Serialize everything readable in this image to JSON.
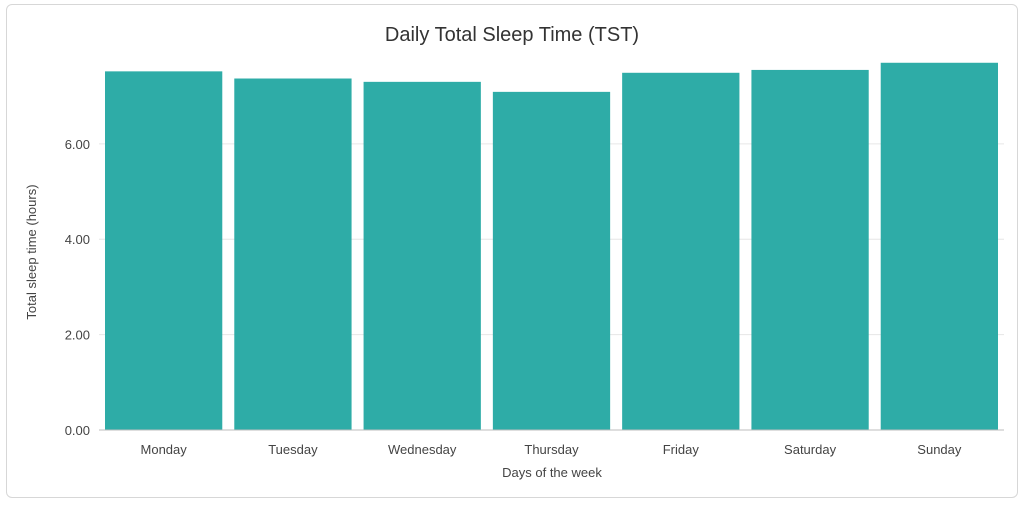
{
  "chart_data": {
    "type": "bar",
    "title": "Daily Total Sleep Time (TST)",
    "xlabel": "Days of the week",
    "ylabel": "Total sleep time (hours)",
    "categories": [
      "Monday",
      "Tuesday",
      "Wednesday",
      "Thursday",
      "Friday",
      "Saturday",
      "Sunday"
    ],
    "values": [
      7.52,
      7.37,
      7.3,
      7.09,
      7.49,
      7.55,
      7.7
    ],
    "ylim": [
      0,
      7.8
    ],
    "yticks": [
      "0.00",
      "2.00",
      "4.00",
      "6.00"
    ],
    "ytick_values": [
      0,
      2,
      4,
      6
    ],
    "grid": true,
    "bar_color": "#2eaca7",
    "grid_color": "#e6e6e6",
    "axis_color": "#bdbdbd"
  }
}
